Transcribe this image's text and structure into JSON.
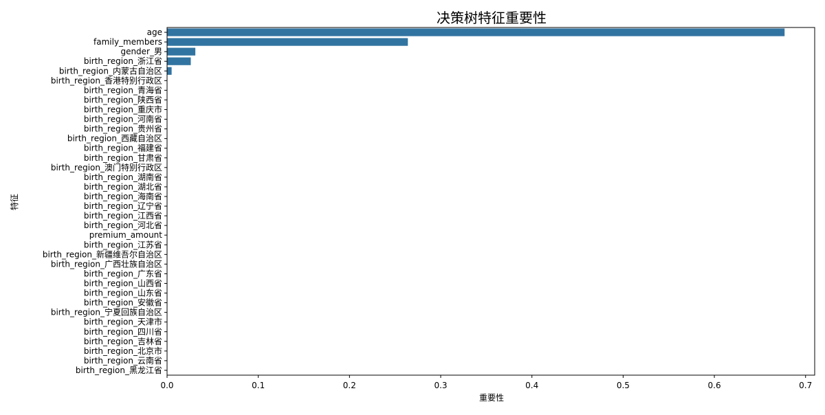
{
  "chart_data": {
    "type": "bar",
    "orientation": "horizontal",
    "title": "决策树特征重要性",
    "xlabel": "重要性",
    "ylabel": "特征",
    "xlim": [
      0,
      0.71
    ],
    "xticks": [
      "0.0",
      "0.1",
      "0.2",
      "0.3",
      "0.4",
      "0.5",
      "0.6",
      "0.7"
    ],
    "grid": false,
    "bar_color": "#3274a1",
    "categories": [
      "age",
      "family_members",
      "gender_男",
      "birth_region_浙江省",
      "birth_region_内蒙古自治区",
      "birth_region_香港特别行政区",
      "birth_region_青海省",
      "birth_region_陕西省",
      "birth_region_重庆市",
      "birth_region_河南省",
      "birth_region_贵州省",
      "birth_region_西藏自治区",
      "birth_region_福建省",
      "birth_region_甘肃省",
      "birth_region_澳门特别行政区",
      "birth_region_湖南省",
      "birth_region_湖北省",
      "birth_region_海南省",
      "birth_region_辽宁省",
      "birth_region_江西省",
      "birth_region_河北省",
      "premium_amount",
      "birth_region_江苏省",
      "birth_region_新疆维吾尔自治区",
      "birth_region_广西壮族自治区",
      "birth_region_广东省",
      "birth_region_山西省",
      "birth_region_山东省",
      "birth_region_安徽省",
      "birth_region_宁夏回族自治区",
      "birth_region_天津市",
      "birth_region_四川省",
      "birth_region_吉林省",
      "birth_region_北京市",
      "birth_region_云南省",
      "birth_region_黑龙江省"
    ],
    "values": [
      0.677,
      0.264,
      0.031,
      0.026,
      0.005,
      0,
      0,
      0,
      0,
      0,
      0,
      0,
      0,
      0,
      0,
      0,
      0,
      0,
      0,
      0,
      0,
      0,
      0,
      0,
      0,
      0,
      0,
      0,
      0,
      0,
      0,
      0,
      0,
      0,
      0,
      0
    ]
  }
}
